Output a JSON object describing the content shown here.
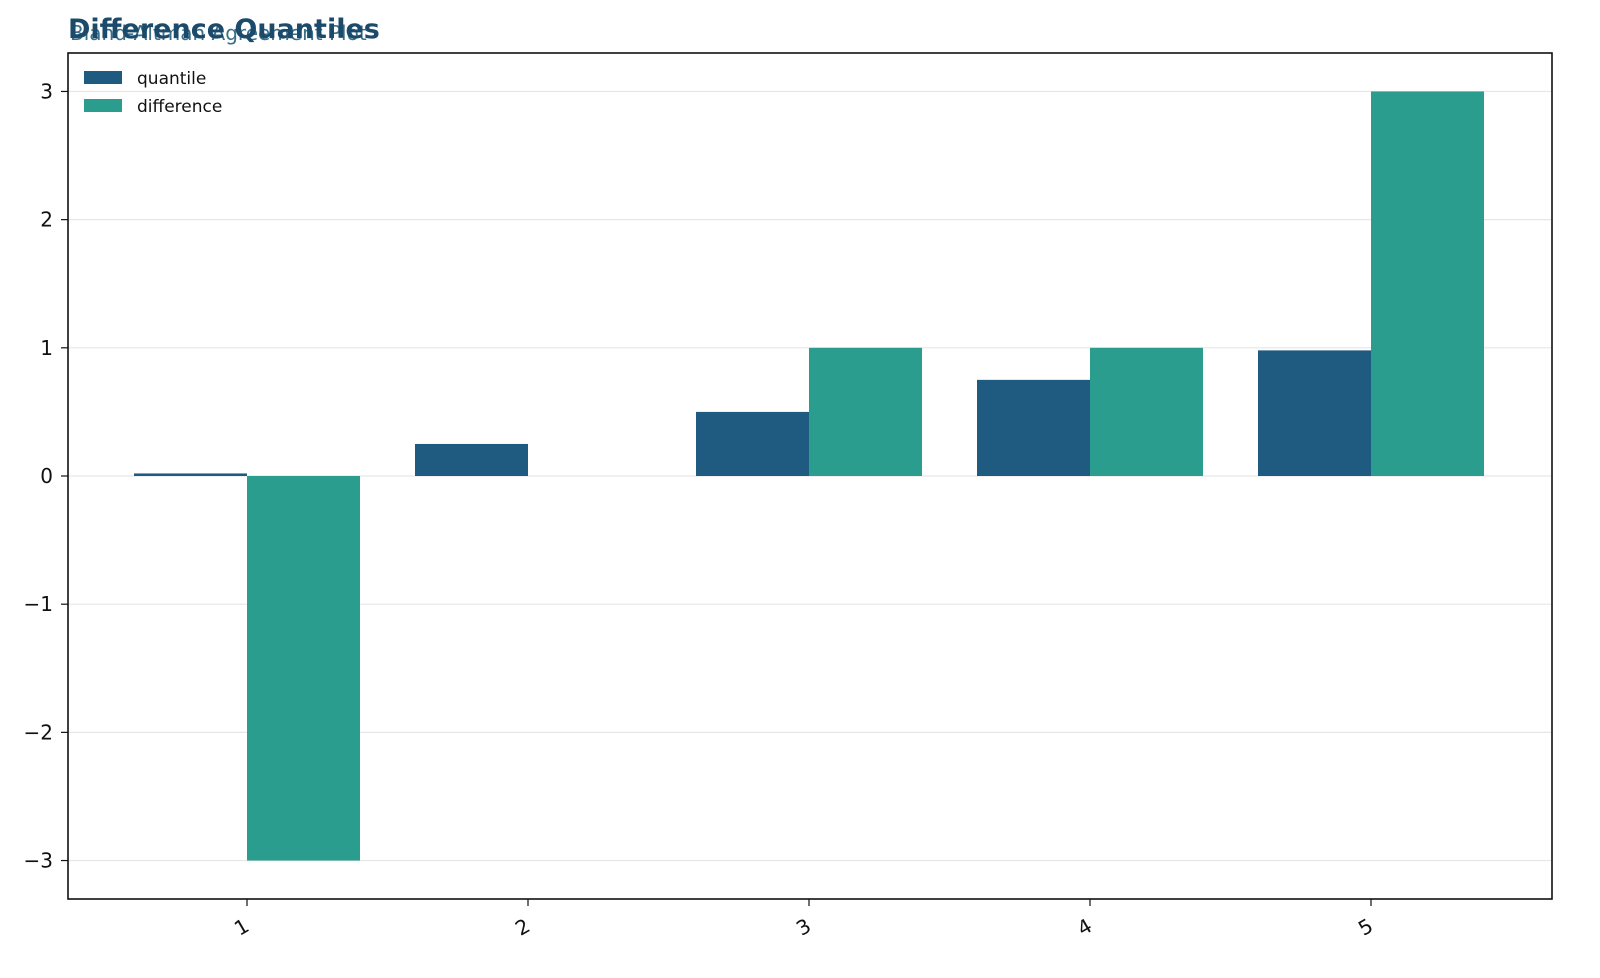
{
  "colors": {
    "quantile": "#1f5a80",
    "difference": "#2a9d8e",
    "title": "#1b4a6b",
    "subtitle": "#3a6f8a",
    "grid": "#e6e6e6",
    "axis": "#111111"
  },
  "chart_data": {
    "type": "bar",
    "title": "Difference Quantiles",
    "subtitle": "Bland-Altman Agreement Plot",
    "xlabel": "",
    "ylabel": "",
    "categories": [
      "1",
      "2",
      "3",
      "4",
      "5"
    ],
    "series": [
      {
        "name": "quantile",
        "values": [
          0.02,
          0.25,
          0.5,
          0.75,
          0.98
        ]
      },
      {
        "name": "difference",
        "values": [
          -3,
          0,
          1,
          1,
          3
        ]
      }
    ],
    "ylim": [
      -3.3,
      3.3
    ],
    "yticks": [
      -3,
      -2,
      -1,
      0,
      1,
      2,
      3
    ],
    "ytick_labels": [
      "−3",
      "−2",
      "−1",
      "0",
      "1",
      "2",
      "3"
    ],
    "grid": "horizontal",
    "legend": "top-left"
  }
}
